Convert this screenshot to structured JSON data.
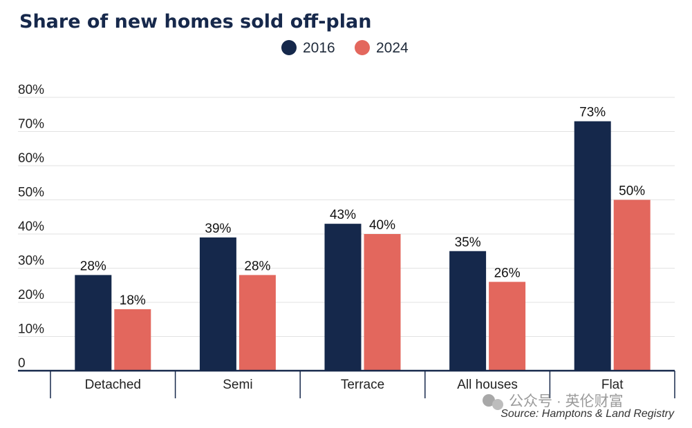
{
  "chart_data": {
    "type": "bar",
    "title": "Share of new homes sold off-plan",
    "categories": [
      "Detached",
      "Semi",
      "Terrace",
      "All houses",
      "Flat"
    ],
    "series": [
      {
        "name": "2016",
        "values": [
          28,
          39,
          43,
          35,
          73
        ],
        "labels": [
          "28%",
          "39%",
          "43%",
          "35%",
          "73%"
        ],
        "color": "#15284b"
      },
      {
        "name": "2024",
        "values": [
          18,
          28,
          40,
          26,
          50
        ],
        "labels": [
          "18%",
          "28%",
          "40%",
          "26%",
          "50%"
        ],
        "color": "#e3675d"
      }
    ],
    "ylim": [
      0,
      80
    ],
    "yticks": [
      0,
      10,
      20,
      30,
      40,
      50,
      60,
      70,
      80
    ],
    "ytick_labels": [
      "0",
      "10%",
      "20%",
      "30%",
      "40%",
      "50%",
      "60%",
      "70%",
      "80%"
    ],
    "grid": true,
    "legend": "top-center",
    "source": "Source: Hamptons & Land Registry"
  },
  "watermark": "公众号 · 英伦财富",
  "colors": {
    "axis": "#16284b",
    "grid": "#e2e2e2",
    "watermark": "#9a9a9a"
  }
}
